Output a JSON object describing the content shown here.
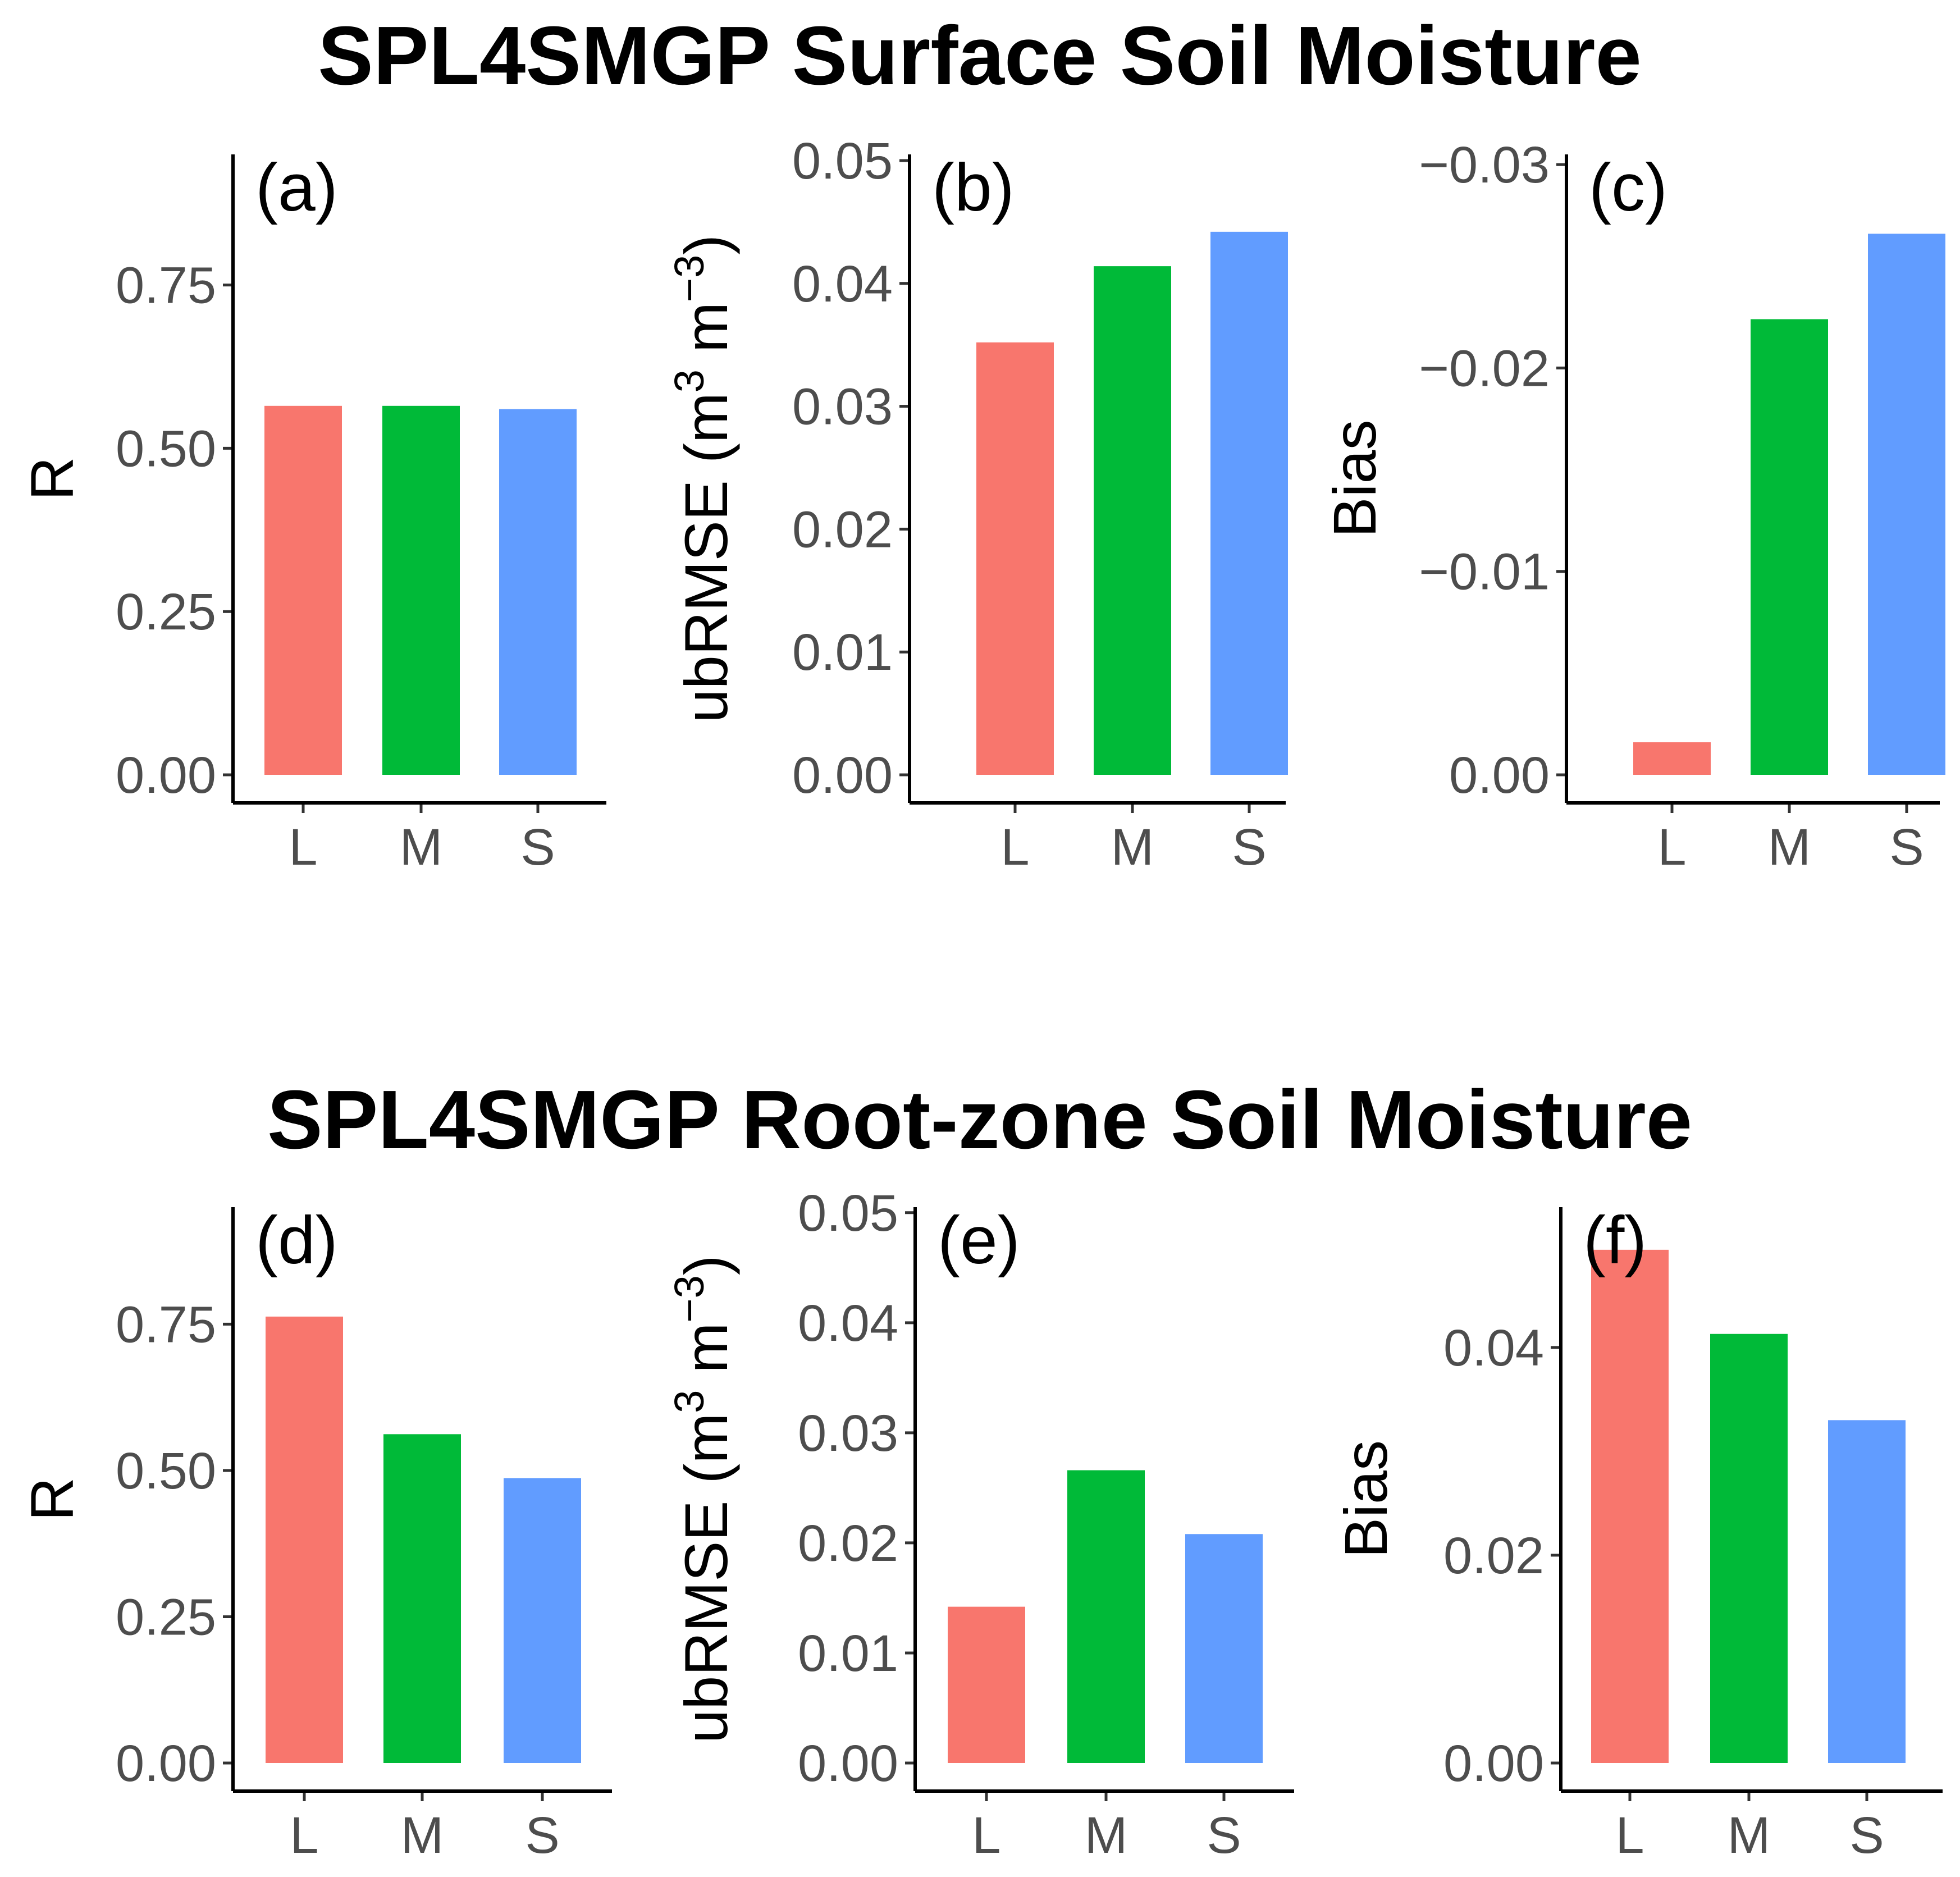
{
  "colors": {
    "L": "#F8766D",
    "M": "#00BA38",
    "S": "#619CFF"
  },
  "sections": [
    {
      "title": "SPL4SMGP Surface Soil Moisture"
    },
    {
      "title": "SPL4SMGP Root-zone Soil Moisture"
    }
  ],
  "chart_data": [
    {
      "type": "bar",
      "panel": "(a)",
      "section": "SPL4SMGP Surface Soil Moisture",
      "categories": [
        "L",
        "M",
        "S"
      ],
      "values": [
        0.565,
        0.565,
        0.56
      ],
      "ylabel": "R",
      "ylim": [
        0,
        0.95
      ],
      "yticks": [
        0,
        0.25,
        0.5,
        0.75
      ],
      "ytick_labels": [
        "0.00",
        "0.25",
        "0.50",
        "0.75"
      ],
      "reversed": false
    },
    {
      "type": "bar",
      "panel": "(b)",
      "section": "SPL4SMGP Surface Soil Moisture",
      "categories": [
        "L",
        "M",
        "S"
      ],
      "values": [
        0.0352,
        0.0414,
        0.0442
      ],
      "ylabel": "ubRMSE (m3 m-3)",
      "ylim": [
        0,
        0.0505
      ],
      "yticks": [
        0,
        0.01,
        0.02,
        0.03,
        0.04,
        0.05
      ],
      "ytick_labels": [
        "0.00",
        "0.01",
        "0.02",
        "0.03",
        "0.04",
        "0.05"
      ],
      "reversed": false
    },
    {
      "type": "bar",
      "panel": "(c)",
      "section": "SPL4SMGP Surface Soil Moisture",
      "categories": [
        "L",
        "M",
        "S"
      ],
      "values": [
        -0.0016,
        -0.0224,
        -0.0266
      ],
      "ylabel": "Bias",
      "ylim": [
        0,
        -0.0305
      ],
      "yticks": [
        0,
        -0.01,
        -0.02,
        -0.03
      ],
      "ytick_labels": [
        "0.00",
        "−0.01",
        "−0.02",
        "−0.03"
      ],
      "reversed": true
    },
    {
      "type": "bar",
      "panel": "(d)",
      "section": "SPL4SMGP Root-zone Soil Moisture",
      "categories": [
        "L",
        "M",
        "S"
      ],
      "values": [
        0.763,
        0.562,
        0.487
      ],
      "ylabel": "R",
      "ylim": [
        0,
        0.95
      ],
      "yticks": [
        0,
        0.25,
        0.5,
        0.75
      ],
      "ytick_labels": [
        "0.00",
        "0.25",
        "0.50",
        "0.75"
      ],
      "reversed": false
    },
    {
      "type": "bar",
      "panel": "(e)",
      "section": "SPL4SMGP Root-zone Soil Moisture",
      "categories": [
        "L",
        "M",
        "S"
      ],
      "values": [
        0.0142,
        0.0266,
        0.0208
      ],
      "ylabel": "ubRMSE (m3 m-3)",
      "ylim": [
        0,
        0.0505
      ],
      "yticks": [
        0,
        0.01,
        0.02,
        0.03,
        0.04,
        0.05
      ],
      "ytick_labels": [
        "0.00",
        "0.01",
        "0.02",
        "0.03",
        "0.04",
        "0.05"
      ],
      "reversed": false
    },
    {
      "type": "bar",
      "panel": "(f)",
      "section": "SPL4SMGP Root-zone Soil Moisture",
      "categories": [
        "L",
        "M",
        "S"
      ],
      "values": [
        0.0494,
        0.0413,
        0.033
      ],
      "ylabel": "Bias",
      "ylim": [
        0,
        0.0535
      ],
      "yticks": [
        0,
        0.02,
        0.04
      ],
      "ytick_labels": [
        "0.00",
        "0.02",
        "0.04"
      ],
      "reversed": false
    }
  ]
}
